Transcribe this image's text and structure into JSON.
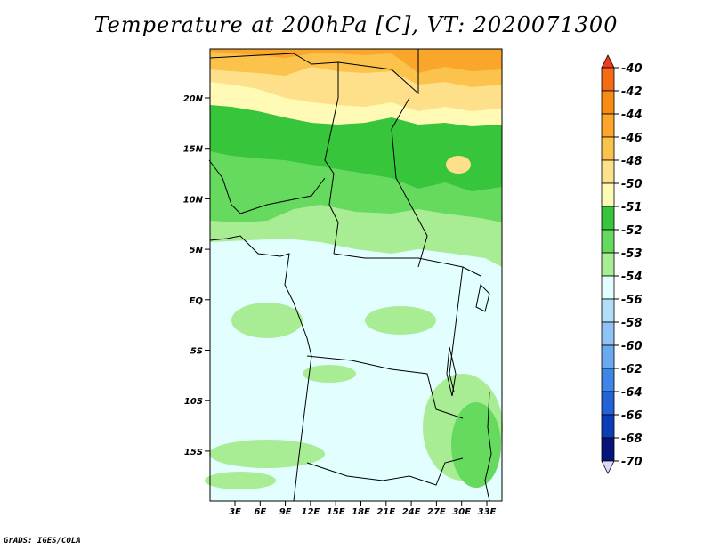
{
  "title": "Temperature at 200hPa [C], VT: 2020071300",
  "credit": "GrADS: IGES/COLA",
  "map": {
    "lat_labels": [
      "20N",
      "15N",
      "10N",
      "5N",
      "EQ",
      "5S",
      "10S",
      "15S"
    ],
    "lon_labels": [
      "3E",
      "6E",
      "9E",
      "12E",
      "15E",
      "18E",
      "21E",
      "24E",
      "27E",
      "30E",
      "33E"
    ],
    "lon_range": [
      0,
      35
    ],
    "lat_range": [
      -20,
      24
    ]
  },
  "legend": {
    "labels": [
      "-40",
      "-42",
      "-44",
      "-46",
      "-48",
      "-50",
      "-51",
      "-52",
      "-53",
      "-54",
      "-56",
      "-58",
      "-60",
      "-62",
      "-64",
      "-66",
      "-68",
      "-70"
    ],
    "colors": [
      "#ef3a1e",
      "#f56a14",
      "#f88c12",
      "#f9a62a",
      "#fbc24c",
      "#fde089",
      "#fffab5",
      "#37c53c",
      "#66d95f",
      "#a8ec93",
      "#e2fefe",
      "#b4ddf8",
      "#90c3f4",
      "#6baaf0",
      "#3d85e6",
      "#2162d8",
      "#0d3cb8",
      "#06157a",
      "#dcd9f8"
    ]
  }
}
